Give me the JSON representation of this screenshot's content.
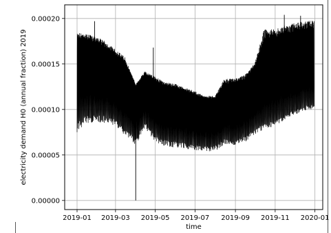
{
  "chart_data": {
    "type": "line",
    "title": "",
    "xlabel": "time",
    "ylabel": "electricity demand H0 (annual fraction) 2019",
    "xlim": [
      "2018-12-13",
      "2020-01-13"
    ],
    "ylim": [
      -1e-05,
      0.000215
    ],
    "grid": true,
    "x_ticks": [
      "2019-01",
      "2019-03",
      "2019-05",
      "2019-07",
      "2019-09",
      "2019-11",
      "2020-01"
    ],
    "y_ticks": [
      "0.00000",
      "0.00005",
      "0.00010",
      "0.00015",
      "0.00020"
    ],
    "y_tick_values": [
      0.0,
      5e-05,
      0.0001,
      0.00015,
      0.0002
    ],
    "x_range": [
      "2019-01-01",
      "2019-12-31"
    ],
    "envelope": {
      "dates": [
        "2019-01-01",
        "2019-01-15",
        "2019-02-01",
        "2019-02-15",
        "2019-03-01",
        "2019-03-15",
        "2019-04-01",
        "2019-04-15",
        "2019-05-01",
        "2019-05-15",
        "2019-06-01",
        "2019-06-15",
        "2019-07-01",
        "2019-07-15",
        "2019-08-01",
        "2019-08-15",
        "2019-09-01",
        "2019-09-15",
        "2019-10-01",
        "2019-10-15",
        "2019-11-01",
        "2019-11-15",
        "2019-12-01",
        "2019-12-15",
        "2019-12-31"
      ],
      "upper": [
        0.000185,
        0.000183,
        0.00018,
        0.000174,
        0.000166,
        0.000158,
        0.000128,
        0.000142,
        0.000136,
        0.00013,
        0.000128,
        0.000124,
        0.00012,
        0.000115,
        0.000115,
        0.000134,
        0.000134,
        0.000138,
        0.000152,
        0.000188,
        0.000188,
        0.000192,
        0.000195,
        0.000197,
        0.000198
      ],
      "mid": [
        0.000145,
        0.000142,
        0.000138,
        0.000133,
        0.000128,
        0.000122,
        0.000112,
        0.000118,
        0.000108,
        0.000104,
        0.000101,
        9.9e-05,
        9.7e-05,
        9.5e-05,
        9.4e-05,
        9.6e-05,
        9.8e-05,
        0.000103,
        0.000112,
        0.00012,
        0.000126,
        0.00013,
        0.000134,
        0.000136,
        0.000138
      ],
      "lower": [
        7.5e-05,
        8.5e-05,
        8.6e-05,
        8.5e-05,
        8.2e-05,
        7.2e-05,
        6e-05,
        8e-05,
        6.4e-05,
        6e-05,
        5.8e-05,
        5.7e-05,
        5.5e-05,
        5.4e-05,
        5.4e-05,
        6.2e-05,
        6e-05,
        6.4e-05,
        7.2e-05,
        7.8e-05,
        8.2e-05,
        8.8e-05,
        9.4e-05,
        9.8e-05,
        0.0001
      ]
    },
    "spikes": [
      {
        "x": "2019-01-28",
        "y": 0.000197
      },
      {
        "x": "2019-04-01",
        "y": 0.0
      },
      {
        "x": "2019-04-28",
        "y": 0.000168
      },
      {
        "x": "2019-11-15",
        "y": 0.000204
      },
      {
        "x": "2019-12-10",
        "y": 0.000203
      }
    ]
  }
}
